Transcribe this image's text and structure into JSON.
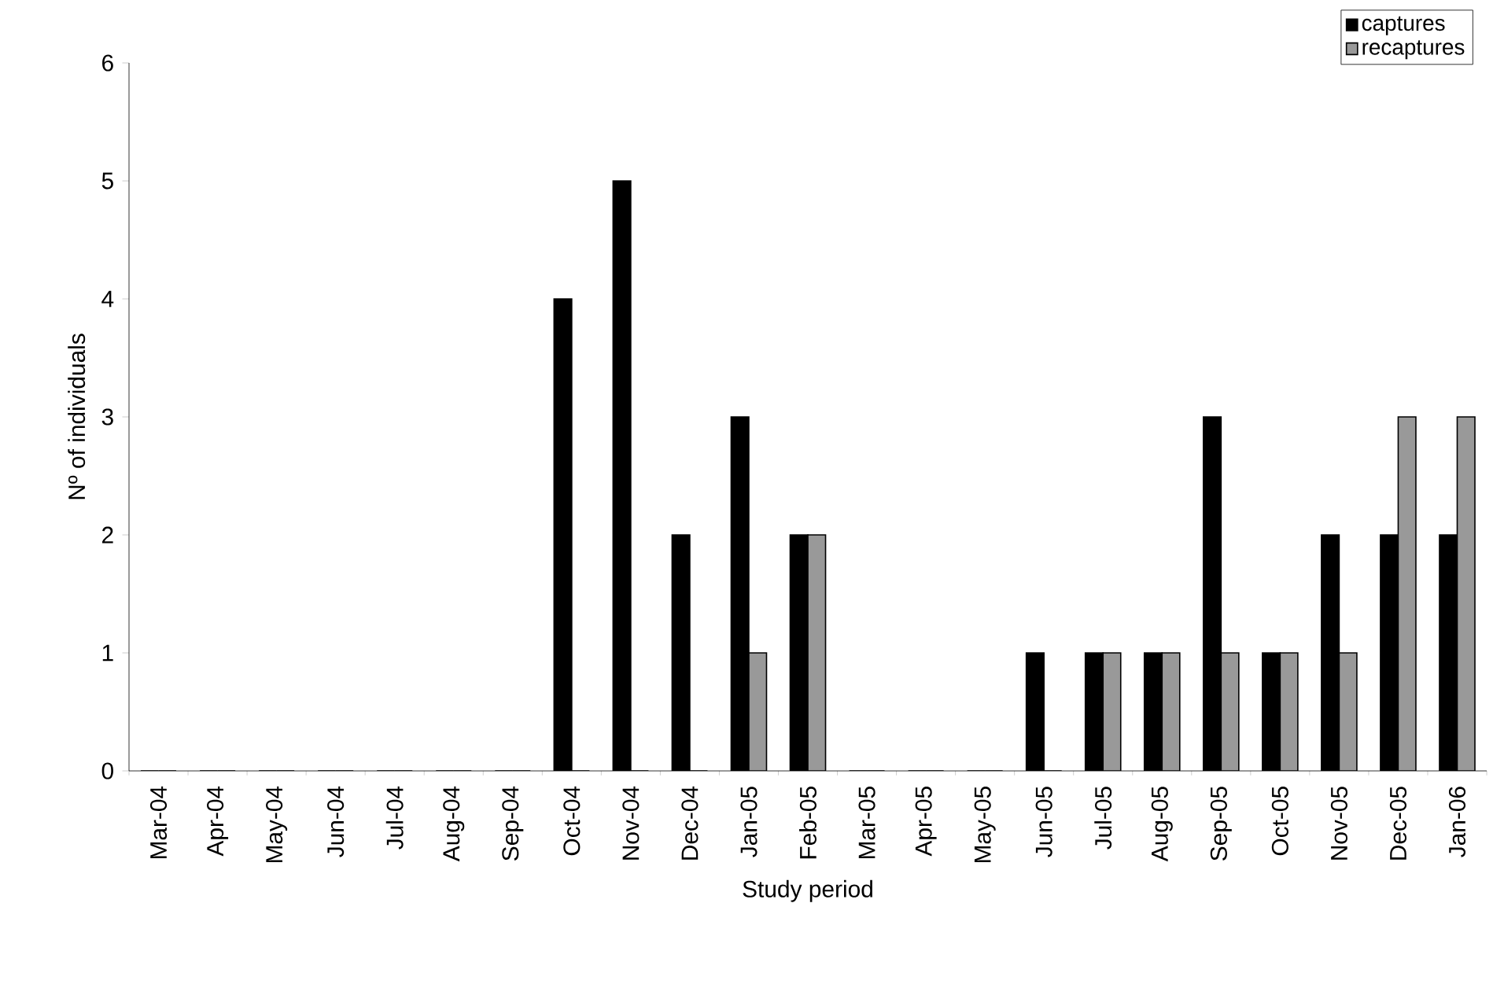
{
  "chart_data": {
    "type": "bar",
    "xlabel": "Study period",
    "ylabel": "Nº of individuals",
    "categories": [
      "Mar-04",
      "Apr-04",
      "May-04",
      "Jun-04",
      "Jul-04",
      "Aug-04",
      "Sep-04",
      "Oct-04",
      "Nov-04",
      "Dec-04",
      "Jan-05",
      "Feb-05",
      "Mar-05",
      "Apr-05",
      "May-05",
      "Jun-05",
      "Jul-05",
      "Aug-05",
      "Sep-05",
      "Oct-05",
      "Nov-05",
      "Dec-05",
      "Jan-06"
    ],
    "series": [
      {
        "name": "captures",
        "color": "#000000",
        "values": [
          0,
          0,
          0,
          0,
          0,
          0,
          0,
          4,
          5,
          2,
          3,
          2,
          0,
          0,
          0,
          1,
          1,
          1,
          3,
          1,
          2,
          2,
          2
        ]
      },
      {
        "name": "recaptures",
        "color": "#999999",
        "values": [
          0,
          0,
          0,
          0,
          0,
          0,
          0,
          0,
          0,
          0,
          1,
          2,
          0,
          0,
          0,
          0,
          1,
          1,
          1,
          1,
          1,
          3,
          3
        ]
      }
    ],
    "ylim": [
      0,
      6
    ],
    "yticks": [
      0,
      1,
      2,
      3,
      4,
      5,
      6
    ],
    "grid": false,
    "legend": "top right"
  }
}
